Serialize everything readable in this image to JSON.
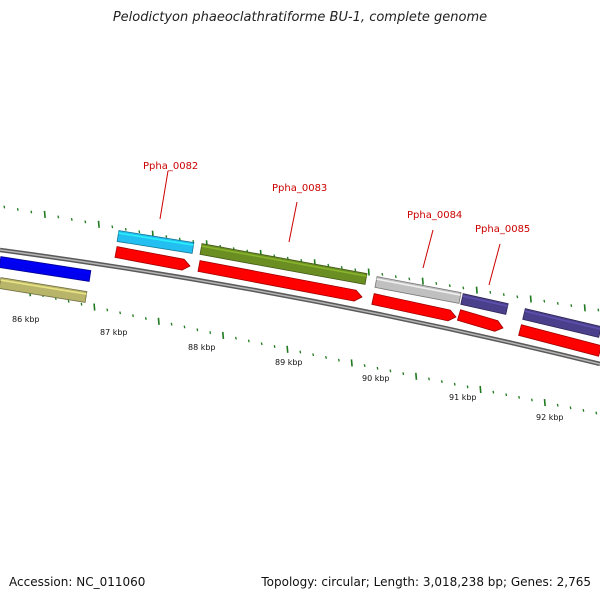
{
  "title": "Pelodictyon phaeoclathratiforme BU-1, complete genome",
  "footer": {
    "accession": "Accession: NC_011060",
    "summary": "Topology: circular; Length: 3,018,238 bp; Genes: 2,765"
  },
  "kbp_labels": [
    "86 kbp",
    "87 kbp",
    "88 kbp",
    "89 kbp",
    "90 kbp",
    "91 kbp",
    "92 kbp"
  ],
  "gene_labels": [
    "Ppha_0082",
    "Ppha_0083",
    "Ppha_0084",
    "Ppha_0085"
  ],
  "colors": {
    "tick": "#1e7a1e",
    "backbone": "#7a7a7a",
    "label": "#cc0000",
    "cds": "#ff0000",
    "blue": "#0000ee",
    "khaki": "#b8b46a",
    "cyan": "#22bff0",
    "olive": "#6b8e23",
    "silver": "#c0c0c0",
    "slate": "#4a3f8a"
  }
}
